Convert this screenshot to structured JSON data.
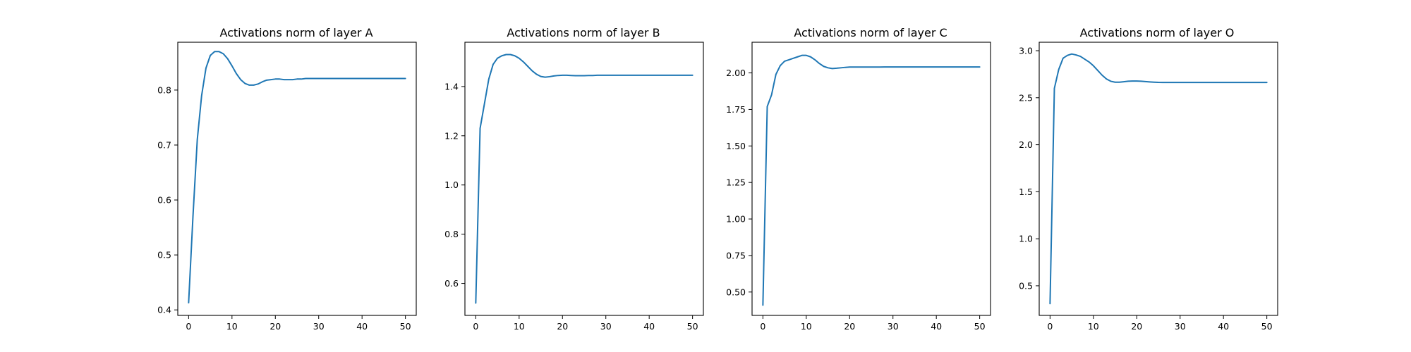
{
  "figure": {
    "background": "#ffffff",
    "line_color": "#1f77b4"
  },
  "chart_data": [
    {
      "type": "line",
      "title": "Activations norm of layer A",
      "xlabel": "",
      "ylabel": "",
      "xlim": [
        -2.5,
        52.5
      ],
      "ylim": [
        0.39,
        0.887
      ],
      "xticks": [
        0,
        10,
        20,
        30,
        40,
        50
      ],
      "yticks": [
        0.4,
        0.5,
        0.6,
        0.7,
        0.8
      ],
      "ytick_labels": [
        "0.4",
        "0.5",
        "0.6",
        "0.7",
        "0.8"
      ],
      "grid": false,
      "x": [
        0,
        1,
        2,
        3,
        4,
        5,
        6,
        7,
        8,
        9,
        10,
        11,
        12,
        13,
        14,
        15,
        16,
        17,
        18,
        19,
        20,
        21,
        22,
        23,
        24,
        25,
        26,
        27,
        28,
        29,
        30,
        31,
        32,
        33,
        34,
        35,
        36,
        37,
        38,
        39,
        40,
        41,
        42,
        43,
        44,
        45,
        46,
        47,
        48,
        49,
        50
      ],
      "values": [
        0.413,
        0.57,
        0.71,
        0.79,
        0.84,
        0.863,
        0.87,
        0.87,
        0.866,
        0.857,
        0.844,
        0.83,
        0.819,
        0.812,
        0.809,
        0.809,
        0.811,
        0.815,
        0.818,
        0.819,
        0.82,
        0.82,
        0.819,
        0.819,
        0.819,
        0.82,
        0.82,
        0.821,
        0.821,
        0.821,
        0.821,
        0.821,
        0.821,
        0.821,
        0.821,
        0.821,
        0.821,
        0.821,
        0.821,
        0.821,
        0.821,
        0.821,
        0.821,
        0.821,
        0.821,
        0.821,
        0.821,
        0.821,
        0.821,
        0.821,
        0.821
      ]
    },
    {
      "type": "line",
      "title": "Activations norm of layer B",
      "xlabel": "",
      "ylabel": "",
      "xlim": [
        -2.5,
        52.5
      ],
      "ylim": [
        0.47,
        1.58
      ],
      "xticks": [
        0,
        10,
        20,
        30,
        40,
        50
      ],
      "yticks": [
        0.6,
        0.8,
        1.0,
        1.2,
        1.4
      ],
      "ytick_labels": [
        "0.6",
        "0.8",
        "1.0",
        "1.2",
        "1.4"
      ],
      "grid": false,
      "x": [
        0,
        1,
        2,
        3,
        4,
        5,
        6,
        7,
        8,
        9,
        10,
        11,
        12,
        13,
        14,
        15,
        16,
        17,
        18,
        19,
        20,
        21,
        22,
        23,
        24,
        25,
        26,
        27,
        28,
        29,
        30,
        31,
        32,
        33,
        34,
        35,
        36,
        37,
        38,
        39,
        40,
        41,
        42,
        43,
        44,
        45,
        46,
        47,
        48,
        49,
        50
      ],
      "values": [
        0.52,
        1.23,
        1.33,
        1.43,
        1.49,
        1.515,
        1.525,
        1.53,
        1.53,
        1.525,
        1.515,
        1.5,
        1.482,
        1.464,
        1.45,
        1.441,
        1.438,
        1.44,
        1.443,
        1.445,
        1.446,
        1.446,
        1.445,
        1.444,
        1.444,
        1.444,
        1.445,
        1.445,
        1.446,
        1.446,
        1.446,
        1.446,
        1.446,
        1.446,
        1.446,
        1.446,
        1.446,
        1.446,
        1.446,
        1.446,
        1.446,
        1.446,
        1.446,
        1.446,
        1.446,
        1.446,
        1.446,
        1.446,
        1.446,
        1.446,
        1.446
      ]
    },
    {
      "type": "line",
      "title": "Activations norm of layer C",
      "xlabel": "",
      "ylabel": "",
      "xlim": [
        -2.5,
        52.5
      ],
      "ylim": [
        0.34,
        2.21
      ],
      "xticks": [
        0,
        10,
        20,
        30,
        40,
        50
      ],
      "yticks": [
        0.5,
        0.75,
        1.0,
        1.25,
        1.5,
        1.75,
        2.0
      ],
      "ytick_labels": [
        "0.50",
        "0.75",
        "1.00",
        "1.25",
        "1.50",
        "1.75",
        "2.00"
      ],
      "grid": false,
      "x": [
        0,
        1,
        2,
        3,
        4,
        5,
        6,
        7,
        8,
        9,
        10,
        11,
        12,
        13,
        14,
        15,
        16,
        17,
        18,
        19,
        20,
        21,
        22,
        23,
        24,
        25,
        26,
        27,
        28,
        29,
        30,
        31,
        32,
        33,
        34,
        35,
        36,
        37,
        38,
        39,
        40,
        41,
        42,
        43,
        44,
        45,
        46,
        47,
        48,
        49,
        50
      ],
      "values": [
        0.41,
        1.77,
        1.85,
        1.99,
        2.05,
        2.08,
        2.09,
        2.1,
        2.11,
        2.12,
        2.12,
        2.11,
        2.09,
        2.065,
        2.045,
        2.035,
        2.03,
        2.032,
        2.035,
        2.038,
        2.04,
        2.04,
        2.04,
        2.04,
        2.04,
        2.04,
        2.04,
        2.04,
        2.041,
        2.041,
        2.041,
        2.041,
        2.041,
        2.041,
        2.041,
        2.041,
        2.041,
        2.041,
        2.041,
        2.041,
        2.041,
        2.041,
        2.041,
        2.041,
        2.041,
        2.041,
        2.041,
        2.041,
        2.041,
        2.041,
        2.041
      ]
    },
    {
      "type": "line",
      "title": "Activations norm of layer O",
      "xlabel": "",
      "ylabel": "",
      "xlim": [
        -2.5,
        52.5
      ],
      "ylim": [
        0.185,
        3.09
      ],
      "xticks": [
        0,
        10,
        20,
        30,
        40,
        50
      ],
      "yticks": [
        0.5,
        1.0,
        1.5,
        2.0,
        2.5,
        3.0
      ],
      "ytick_labels": [
        "0.5",
        "1.0",
        "1.5",
        "2.0",
        "2.5",
        "3.0"
      ],
      "grid": false,
      "x": [
        0,
        1,
        2,
        3,
        4,
        5,
        6,
        7,
        8,
        9,
        10,
        11,
        12,
        13,
        14,
        15,
        16,
        17,
        18,
        19,
        20,
        21,
        22,
        23,
        24,
        25,
        26,
        27,
        28,
        29,
        30,
        31,
        32,
        33,
        34,
        35,
        36,
        37,
        38,
        39,
        40,
        41,
        42,
        43,
        44,
        45,
        46,
        47,
        48,
        49,
        50
      ],
      "values": [
        0.31,
        2.6,
        2.8,
        2.92,
        2.95,
        2.965,
        2.955,
        2.94,
        2.91,
        2.88,
        2.84,
        2.79,
        2.74,
        2.7,
        2.675,
        2.665,
        2.665,
        2.67,
        2.675,
        2.677,
        2.677,
        2.675,
        2.672,
        2.668,
        2.665,
        2.663,
        2.662,
        2.662,
        2.662,
        2.662,
        2.662,
        2.662,
        2.662,
        2.662,
        2.662,
        2.662,
        2.662,
        2.662,
        2.662,
        2.662,
        2.662,
        2.662,
        2.662,
        2.662,
        2.662,
        2.662,
        2.662,
        2.662,
        2.662,
        2.662,
        2.662
      ]
    }
  ]
}
